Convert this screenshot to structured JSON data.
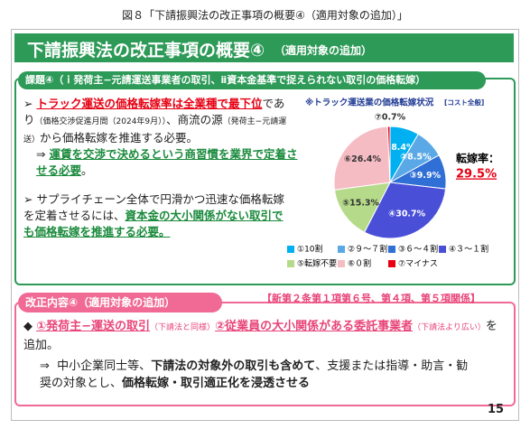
{
  "caption": "図８「下請振興法の改正事項の概要④（適用対象の追加）」",
  "header": {
    "title": "下請振興法の改正事項の概要④",
    "subtitle": "（適用対象の追加）"
  },
  "issue": {
    "heading": "課題④（ｉ発荷主−元請運送事業者の取引、ⅱ資本金基準で捉えられない取引の価格転嫁）",
    "bullets": [
      [
        "➢",
        "トラック運送の価格転嫁率は全業種で最下位",
        "であり",
        "（価格交渉促進月間（2024年9月））",
        "、商流の源",
        "（発荷主−元請運送）",
        "から価格転嫁を推進する必要。"
      ],
      [
        "⇒",
        "運賃を交渉で決めるという商習慣を業界で定着させる必要",
        "。"
      ],
      [
        "➢",
        "サプライチェーン全体で円滑かつ迅速な価格転嫁を定着させるには、",
        "資本金の大小関係がない取引でも価格転嫁を推進する必要。"
      ]
    ]
  },
  "chart_data": {
    "type": "pie",
    "title": "※トラック運送業の価格転嫁状況",
    "title_note": "[コスト全般]",
    "categories": [
      "①10割",
      "②９～７割",
      "③６～４割",
      "④３～１割",
      "⑤転嫁不要",
      "⑥０割",
      "⑦マイナス"
    ],
    "values": [
      8.4,
      8.5,
      9.9,
      30.7,
      15.3,
      26.4,
      0.7
    ],
    "value_labels": [
      "①8.4%",
      "②8.5%",
      "③9.9%",
      "④30.7%",
      "⑤15.3%",
      "⑥26.4%",
      "⑦0.7%"
    ],
    "colors": [
      "#00b0f0",
      "#5aa9e6",
      "#2f6fd6",
      "#4a4fd8",
      "#b5db8a",
      "#f6bcc4",
      "#e60012"
    ],
    "annotation": {
      "label": "転嫁率：",
      "value": "29.5%"
    }
  },
  "revision": {
    "heading": "改正内容④（適用対象の追加）",
    "reference": "【新第２条第１項第６号、第４項、第５項関係】",
    "lines": [
      [
        "◆",
        "①発荷主−運送の取引",
        "（下請法と同様）",
        "②従業員の大小関係がある委託事業者",
        "（下請法より広い）",
        "を追加。"
      ],
      [
        "⇒",
        "中小企業同士等、",
        "下請法の対象外の取引も含めて",
        "、支援または指導・助言・勧奨の対象とし、",
        "価格転嫁・取引適正化を浸透させる"
      ]
    ]
  },
  "page_number": "15"
}
